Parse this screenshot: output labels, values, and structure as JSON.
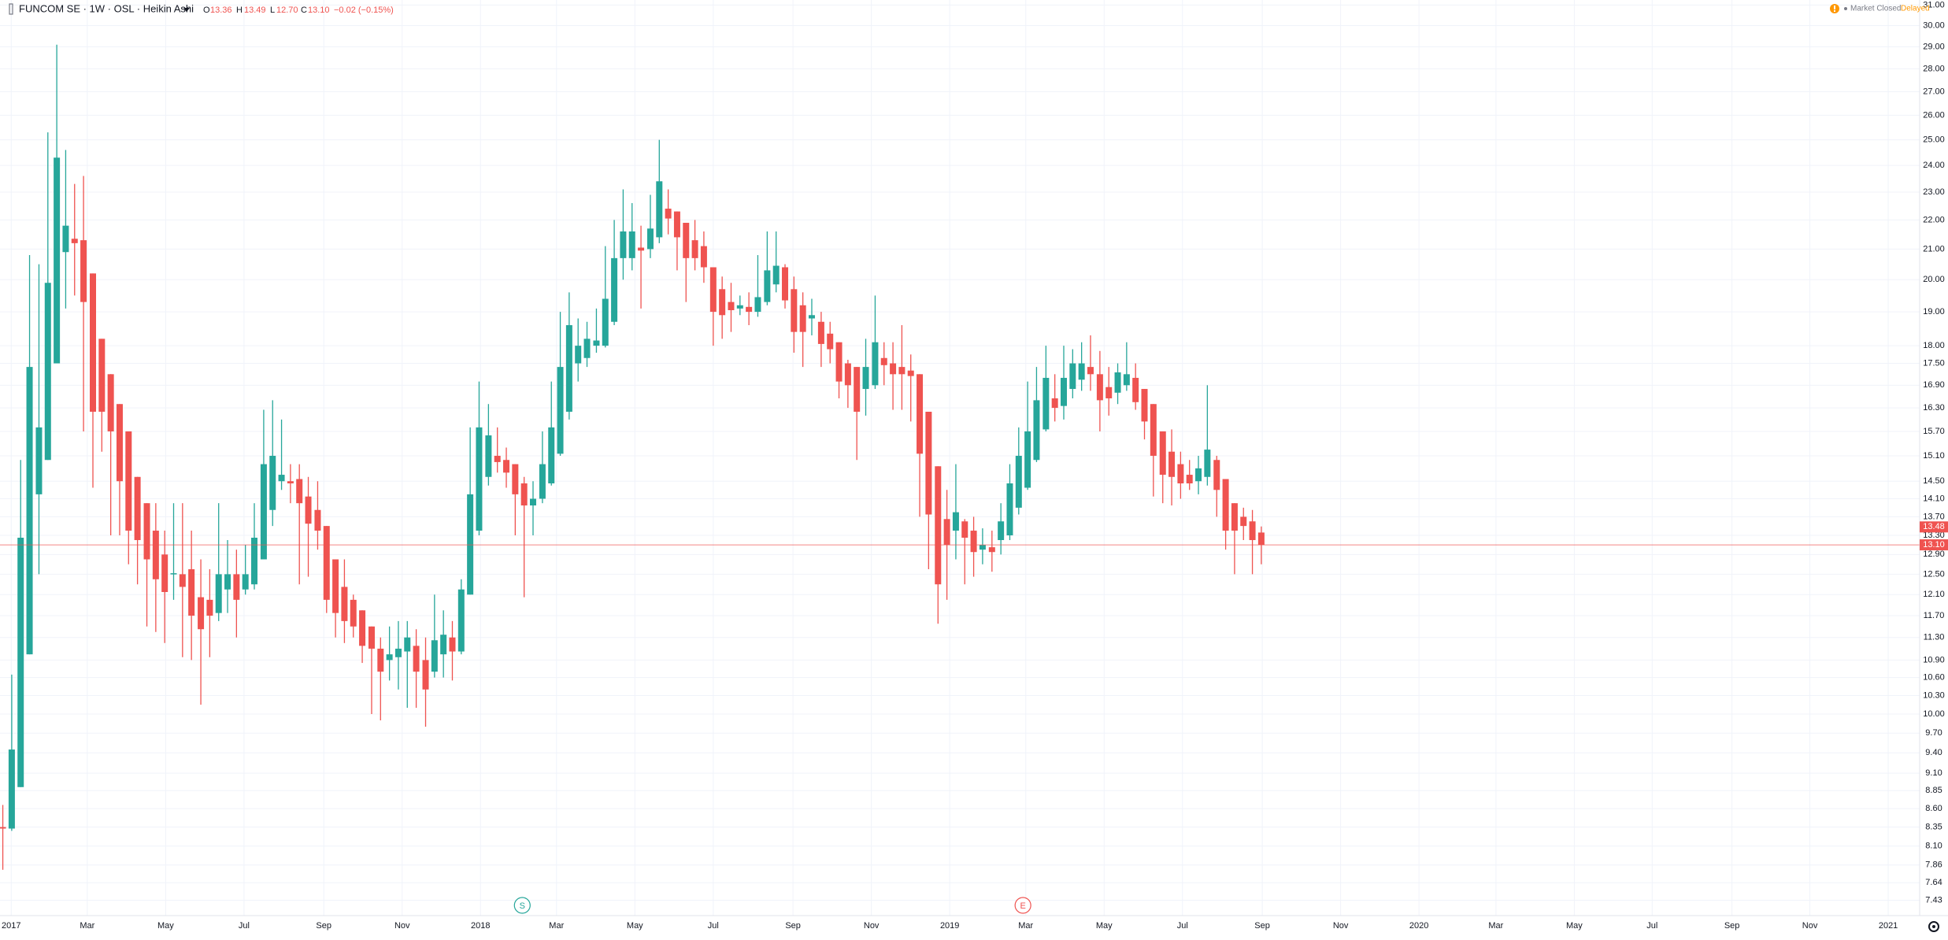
{
  "chart_data": {
    "type": "candlestick",
    "title": "FUNCOM SE · 1W · OSL · Heikin Ashi",
    "legend": {
      "ohlc": [
        {
          "label": "O",
          "value": "13.36"
        },
        {
          "label": "H",
          "value": "13.49"
        },
        {
          "label": "L",
          "value": "12.70"
        },
        {
          "label": "C",
          "value": "13.10"
        }
      ],
      "change": "−0.02 (−0.15%)"
    },
    "market_status": "Market Closed",
    "data_status": "Delayed",
    "log_scale": true,
    "grid": true,
    "up_color": "#26a69a",
    "down_color": "#ef5350",
    "x": [
      2016.982,
      2017.001,
      2017.02,
      2017.039,
      2017.059,
      2017.078,
      2017.097,
      2017.116,
      2017.135,
      2017.154,
      2017.174,
      2017.193,
      2017.212,
      2017.231,
      2017.25,
      2017.269,
      2017.289,
      2017.308,
      2017.327,
      2017.346,
      2017.365,
      2017.384,
      2017.404,
      2017.423,
      2017.442,
      2017.461,
      2017.48,
      2017.499,
      2017.518,
      2017.538,
      2017.557,
      2017.576,
      2017.595,
      2017.614,
      2017.633,
      2017.653,
      2017.672,
      2017.691,
      2017.71,
      2017.729,
      2017.748,
      2017.768,
      2017.787,
      2017.806,
      2017.825,
      2017.844,
      2017.863,
      2017.883,
      2017.902,
      2017.921,
      2017.94,
      2017.959,
      2017.978,
      2017.997,
      2018.017,
      2018.036,
      2018.055,
      2018.074,
      2018.093,
      2018.112,
      2018.132,
      2018.151,
      2018.17,
      2018.189,
      2018.208,
      2018.227,
      2018.247,
      2018.266,
      2018.285,
      2018.304,
      2018.323,
      2018.342,
      2018.362,
      2018.381,
      2018.4,
      2018.419,
      2018.438,
      2018.457,
      2018.476,
      2018.496,
      2018.515,
      2018.534,
      2018.553,
      2018.572,
      2018.591,
      2018.611,
      2018.63,
      2018.649,
      2018.668,
      2018.687,
      2018.706,
      2018.726,
      2018.745,
      2018.764,
      2018.783,
      2018.802,
      2018.821,
      2018.841,
      2018.86,
      2018.879,
      2018.898,
      2018.917,
      2018.936,
      2018.955,
      2018.975,
      2018.994,
      2019.013,
      2019.032,
      2019.051,
      2019.07,
      2019.09,
      2019.109,
      2019.128,
      2019.147,
      2019.166,
      2019.185,
      2019.205,
      2019.224,
      2019.243,
      2019.262,
      2019.281,
      2019.3,
      2019.32,
      2019.339,
      2019.358,
      2019.377,
      2019.396,
      2019.415,
      2019.434,
      2019.454,
      2019.473,
      2019.492,
      2019.511,
      2019.53,
      2019.549,
      2019.569,
      2019.588,
      2019.607,
      2019.626,
      2019.645,
      2019.664
    ],
    "open": [
      8.35,
      8.33,
      8.9,
      11.0,
      14.2,
      15.0,
      17.5,
      20.9,
      21.35,
      21.3,
      20.2,
      18.2,
      17.2,
      16.4,
      15.7,
      14.6,
      14.0,
      13.4,
      12.9,
      12.5,
      12.5,
      12.6,
      12.05,
      12.0,
      11.75,
      12.2,
      12.5,
      12.2,
      12.3,
      12.8,
      13.85,
      14.5,
      14.5,
      14.55,
      14.15,
      13.85,
      13.5,
      12.8,
      12.25,
      12.0,
      11.8,
      11.5,
      11.1,
      10.9,
      10.95,
      11.05,
      11.15,
      10.9,
      10.7,
      11.0,
      11.3,
      11.05,
      12.1,
      13.4,
      14.6,
      15.1,
      15.0,
      14.9,
      14.45,
      13.95,
      14.1,
      14.45,
      15.15,
      16.2,
      17.5,
      17.65,
      18.0,
      18.0,
      18.7,
      20.7,
      20.7,
      21.05,
      21.0,
      21.4,
      22.4,
      22.3,
      21.9,
      21.3,
      21.1,
      20.4,
      19.7,
      19.3,
      19.1,
      19.15,
      19.0,
      19.3,
      19.85,
      20.4,
      19.7,
      19.2,
      18.8,
      18.7,
      18.35,
      18.1,
      17.5,
      17.4,
      16.8,
      16.9,
      17.65,
      17.5,
      17.4,
      17.3,
      17.2,
      16.2,
      14.85,
      13.65,
      13.4,
      13.6,
      13.4,
      13.0,
      13.05,
      13.2,
      13.3,
      13.9,
      14.35,
      15.0,
      15.75,
      16.55,
      16.35,
      16.8,
      17.05,
      17.4,
      17.2,
      16.85,
      16.7,
      16.9,
      17.1,
      16.8,
      16.4,
      15.7,
      15.2,
      14.9,
      14.65,
      14.5,
      14.6,
      15.0,
      14.55,
      14.0,
      13.7,
      13.6,
      13.36
    ],
    "high": [
      8.65,
      10.65,
      15.0,
      20.8,
      20.5,
      25.3,
      29.1,
      24.6,
      23.3,
      23.6,
      20.2,
      18.2,
      17.2,
      16.4,
      15.7,
      14.6,
      14.0,
      14.0,
      13.4,
      14.0,
      14.0,
      13.4,
      12.8,
      12.6,
      14.0,
      13.2,
      13.0,
      13.1,
      14.0,
      16.25,
      16.5,
      16.0,
      14.9,
      14.9,
      14.6,
      14.5,
      13.5,
      12.8,
      12.8,
      12.1,
      11.8,
      11.5,
      11.3,
      11.5,
      11.6,
      11.6,
      11.45,
      11.3,
      12.1,
      11.8,
      11.6,
      12.4,
      15.8,
      17.0,
      16.4,
      15.8,
      15.3,
      14.9,
      14.6,
      14.5,
      15.7,
      17.0,
      19.0,
      19.6,
      18.8,
      18.7,
      19.1,
      21.1,
      22.0,
      23.1,
      22.6,
      21.8,
      22.9,
      25.0,
      23.1,
      22.3,
      21.9,
      22.0,
      21.6,
      20.4,
      20.1,
      19.9,
      19.5,
      19.6,
      20.8,
      21.6,
      21.6,
      20.5,
      20.1,
      19.6,
      19.4,
      19.0,
      18.7,
      18.1,
      17.6,
      17.4,
      18.2,
      19.5,
      18.1,
      18.1,
      18.6,
      17.75,
      17.2,
      16.2,
      14.85,
      14.3,
      14.9,
      13.65,
      13.7,
      13.45,
      13.4,
      14.0,
      14.9,
      15.8,
      17.0,
      17.4,
      18.0,
      17.2,
      18.0,
      17.9,
      18.1,
      18.3,
      17.85,
      17.4,
      17.5,
      18.1,
      17.5,
      16.8,
      16.4,
      15.7,
      15.75,
      15.2,
      15.0,
      15.1,
      16.9,
      15.1,
      14.55,
      14.0,
      13.9,
      13.85,
      13.49
    ],
    "low": [
      7.8,
      8.3,
      8.9,
      11.0,
      12.5,
      15.0,
      17.5,
      19.1,
      19.5,
      15.7,
      14.35,
      15.2,
      13.3,
      13.3,
      12.7,
      12.3,
      11.5,
      11.4,
      11.2,
      12.0,
      10.95,
      10.9,
      10.15,
      10.95,
      11.6,
      11.75,
      11.3,
      12.1,
      12.2,
      12.8,
      13.5,
      14.3,
      14.0,
      12.3,
      12.45,
      13.0,
      11.75,
      11.3,
      11.2,
      11.3,
      10.85,
      10.0,
      9.9,
      10.55,
      10.4,
      10.1,
      10.1,
      9.8,
      10.6,
      10.6,
      10.55,
      11.0,
      12.1,
      13.3,
      14.4,
      14.7,
      14.35,
      13.3,
      12.05,
      13.3,
      14.0,
      14.4,
      15.1,
      16.0,
      17.0,
      17.4,
      17.8,
      17.95,
      18.6,
      20.0,
      20.3,
      19.1,
      20.7,
      21.2,
      21.5,
      20.3,
      19.3,
      20.3,
      19.9,
      18.0,
      18.2,
      18.4,
      18.9,
      18.6,
      18.85,
      19.2,
      19.6,
      19.1,
      17.8,
      17.4,
      18.3,
      17.4,
      17.5,
      16.55,
      16.3,
      15.0,
      16.1,
      16.8,
      16.9,
      16.25,
      16.25,
      15.95,
      13.7,
      12.6,
      11.55,
      12.0,
      12.8,
      12.3,
      12.45,
      12.7,
      12.55,
      12.9,
      13.2,
      13.75,
      14.3,
      14.95,
      15.7,
      15.95,
      16.0,
      16.55,
      16.75,
      16.75,
      15.7,
      16.1,
      16.4,
      16.75,
      16.25,
      15.5,
      14.15,
      14.0,
      13.95,
      14.1,
      14.3,
      14.2,
      14.4,
      13.7,
      13.0,
      12.5,
      13.2,
      12.5,
      12.7
    ],
    "close": [
      8.33,
      9.45,
      13.25,
      17.4,
      15.8,
      19.9,
      24.3,
      21.8,
      21.2,
      19.3,
      16.2,
      16.2,
      15.7,
      14.5,
      13.4,
      13.2,
      12.8,
      12.4,
      12.15,
      12.52,
      12.25,
      11.7,
      11.45,
      11.7,
      12.5,
      12.5,
      12.0,
      12.5,
      13.25,
      14.9,
      15.1,
      14.65,
      14.45,
      14.0,
      13.55,
      13.4,
      12.0,
      11.75,
      11.6,
      11.5,
      11.15,
      11.1,
      10.7,
      11.0,
      11.1,
      11.3,
      10.7,
      10.4,
      11.25,
      11.35,
      11.05,
      12.2,
      14.2,
      15.8,
      15.6,
      14.95,
      14.7,
      14.2,
      13.95,
      14.1,
      14.9,
      15.8,
      17.4,
      18.6,
      18.0,
      18.2,
      18.15,
      19.4,
      20.7,
      21.6,
      21.6,
      20.95,
      21.7,
      23.4,
      22.05,
      21.4,
      20.7,
      20.7,
      20.4,
      19.0,
      18.9,
      19.05,
      19.2,
      19.0,
      19.45,
      20.3,
      20.45,
      19.35,
      18.4,
      18.4,
      18.9,
      18.05,
      17.9,
      17.0,
      16.9,
      16.2,
      17.4,
      18.1,
      17.45,
      17.2,
      17.2,
      17.15,
      15.15,
      13.75,
      12.3,
      13.1,
      13.8,
      13.25,
      12.95,
      13.1,
      12.95,
      13.6,
      14.45,
      15.1,
      15.7,
      16.5,
      17.1,
      16.3,
      17.1,
      17.5,
      17.5,
      17.2,
      16.5,
      16.55,
      17.25,
      17.2,
      16.45,
      15.95,
      15.1,
      14.65,
      14.6,
      14.45,
      14.45,
      14.8,
      15.25,
      14.3,
      13.4,
      13.4,
      13.5,
      13.2,
      13.1
    ],
    "xlim": [
      2016.976,
      2021.067
    ],
    "xticks": [
      2017,
      {
        "value": 2017.162,
        "label": "Mar"
      },
      {
        "value": 2017.329,
        "label": "May"
      },
      {
        "value": 2017.496,
        "label": "Jul"
      },
      {
        "value": 2017.666,
        "label": "Sep"
      },
      {
        "value": 2017.833,
        "label": "Nov"
      },
      2018,
      {
        "value": 2018.162,
        "label": "Mar"
      },
      {
        "value": 2018.329,
        "label": "May"
      },
      {
        "value": 2018.496,
        "label": "Jul"
      },
      {
        "value": 2018.666,
        "label": "Sep"
      },
      {
        "value": 2018.833,
        "label": "Nov"
      },
      2019,
      {
        "value": 2019.162,
        "label": "Mar"
      },
      {
        "value": 2019.329,
        "label": "May"
      },
      {
        "value": 2019.496,
        "label": "Jul"
      },
      {
        "value": 2019.666,
        "label": "Sep"
      },
      {
        "value": 2019.833,
        "label": "Nov"
      },
      2020,
      {
        "value": 2020.164,
        "label": "Mar"
      },
      {
        "value": 2020.331,
        "label": "May"
      },
      {
        "value": 2020.497,
        "label": "Jul"
      },
      {
        "value": 2020.667,
        "label": "Sep"
      },
      {
        "value": 2020.833,
        "label": "Nov"
      },
      2021
    ],
    "ylim": [
      7.25,
      31.25
    ],
    "yticks": [
      {
        "value": 31,
        "label": "31.00"
      },
      {
        "value": 30,
        "label": "30.00"
      },
      {
        "value": 29,
        "label": "29.00"
      },
      {
        "value": 28,
        "label": "28.00"
      },
      {
        "value": 27,
        "label": "27.00"
      },
      {
        "value": 26,
        "label": "26.00"
      },
      {
        "value": 25,
        "label": "25.00"
      },
      {
        "value": 24,
        "label": "24.00"
      },
      {
        "value": 23,
        "label": "23.00"
      },
      {
        "value": 22,
        "label": "22.00"
      },
      {
        "value": 21,
        "label": "21.00"
      },
      {
        "value": 20,
        "label": "20.00"
      },
      {
        "value": 19,
        "label": "19.00"
      },
      {
        "value": 18,
        "label": "18.00"
      },
      {
        "value": 17.5,
        "label": "17.50"
      },
      {
        "value": 16.9,
        "label": "16.90"
      },
      {
        "value": 16.3,
        "label": "16.30"
      },
      {
        "value": 15.7,
        "label": "15.70"
      },
      {
        "value": 15.1,
        "label": "15.10"
      },
      {
        "value": 14.5,
        "label": "14.50"
      },
      {
        "value": 14.1,
        "label": "14.10"
      },
      {
        "value": 13.7,
        "label": "13.70"
      },
      {
        "value": 13.3,
        "label": "13.30"
      },
      {
        "value": 12.9,
        "label": "12.90"
      },
      {
        "value": 12.5,
        "label": "12.50"
      },
      {
        "value": 12.1,
        "label": "12.10"
      },
      {
        "value": 11.7,
        "label": "11.70"
      },
      {
        "value": 11.3,
        "label": "11.30"
      },
      {
        "value": 10.9,
        "label": "10.90"
      },
      {
        "value": 10.6,
        "label": "10.60"
      },
      {
        "value": 10.3,
        "label": "10.30"
      },
      {
        "value": 10,
        "label": "10.00"
      },
      {
        "value": 9.7,
        "label": "9.70"
      },
      {
        "value": 9.4,
        "label": "9.40"
      },
      {
        "value": 9.1,
        "label": "9.10"
      },
      8.85,
      {
        "value": 8.6,
        "label": "8.60"
      },
      8.35,
      {
        "value": 8.1,
        "label": "8.10"
      },
      7.86,
      7.64,
      7.43
    ],
    "price_marker": 13.48,
    "last_price_label": "13.10",
    "events": [
      {
        "label": "S",
        "x": 2018.089,
        "color": "#26a69a"
      },
      {
        "label": "E",
        "x": 2019.156,
        "color": "#ef5350"
      }
    ]
  }
}
